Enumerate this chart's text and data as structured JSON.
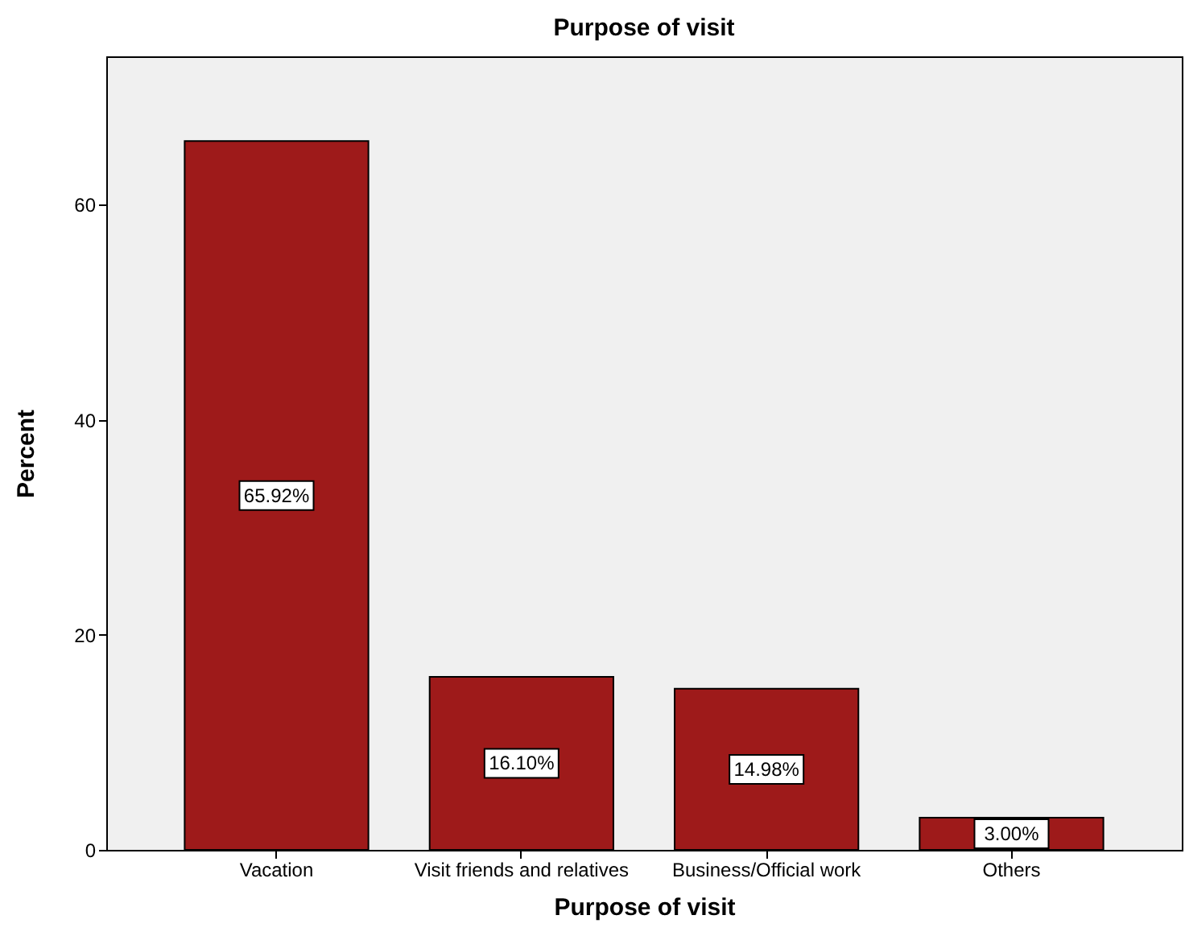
{
  "chart_data": {
    "type": "bar",
    "title": "Purpose of visit",
    "xlabel": "Purpose of visit",
    "ylabel": "Percent",
    "categories": [
      "Vacation",
      "Visit friends and relatives",
      "Business/Official work",
      "Others"
    ],
    "values": [
      65.92,
      16.1,
      14.98,
      3.0
    ],
    "value_labels": [
      "65.92%",
      "16.10%",
      "14.98%",
      "3.00%"
    ],
    "color": "#9e1a1a",
    "ylim": [
      0,
      73.8
    ],
    "yticks": [
      0,
      20,
      40,
      60
    ],
    "grid": false
  }
}
